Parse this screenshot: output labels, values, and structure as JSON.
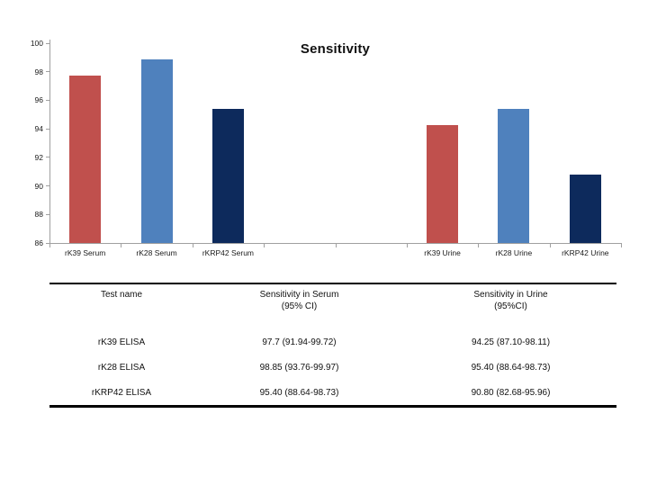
{
  "chart_data": {
    "type": "bar",
    "title": "Sensitivity",
    "categories": [
      "rK39 Serum",
      "rK28 Serum",
      "rKRP42 Serum",
      "",
      "",
      "rK39  Urine",
      "rK28  Urine",
      "rKRP42 Urine"
    ],
    "values": [
      97.7,
      98.85,
      95.4,
      null,
      null,
      94.25,
      95.4,
      90.8
    ],
    "bar_colors": [
      "#C0504D",
      "#4F81BD",
      "#0D2A5C",
      "",
      "",
      "#C0504D",
      "#4F81BD",
      "#0D2A5C"
    ],
    "xlabel": "",
    "ylabel": "",
    "ylim": [
      86,
      100
    ],
    "yticks": [
      100,
      98,
      96,
      94,
      92,
      90,
      88,
      86
    ],
    "grid": false,
    "legend": "none",
    "axis_color": "#a0a0a0"
  },
  "table": {
    "columns": [
      {
        "title": "Test  name",
        "subtitle": ""
      },
      {
        "title": "Sensitivity in Serum",
        "subtitle": "(95% CI)"
      },
      {
        "title": "Sensitivity in Urine",
        "subtitle": "(95%CI)"
      }
    ],
    "rows": [
      {
        "test": "rK39  ELISA",
        "serum": "97.7 (91.94-99.72)",
        "urine": "94.25 (87.10-98.11)"
      },
      {
        "test": "rK28 ELISA",
        "serum": "98.85 (93.76-99.97)",
        "urine": "95.40 (88.64-98.73)"
      },
      {
        "test": "rKRP42  ELISA",
        "serum": "95.40 (88.64-98.73)",
        "urine": "90.80 (82.68-95.96)"
      }
    ]
  }
}
